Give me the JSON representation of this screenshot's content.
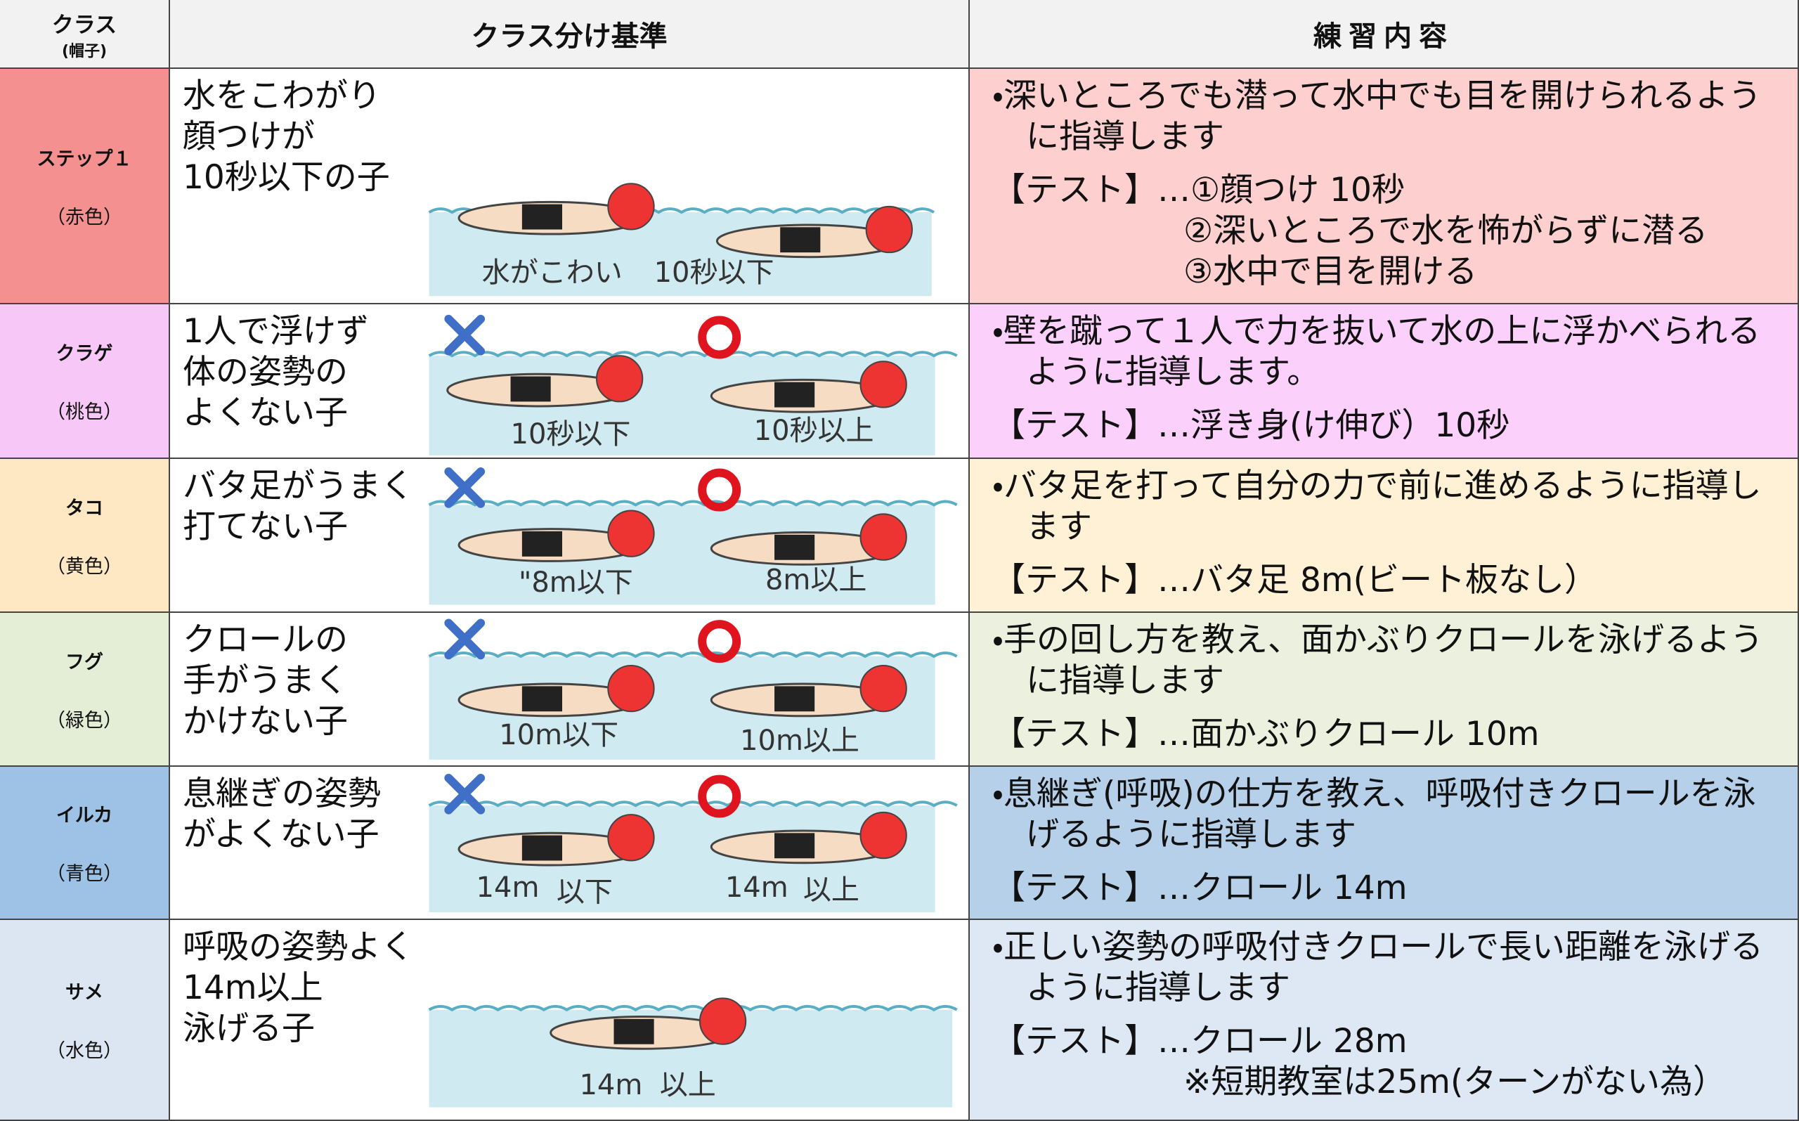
{
  "header": {
    "class": "クラス",
    "cap": "(帽子)",
    "criteria": "クラス分け基準",
    "practice": "練習内容"
  },
  "rows": [
    {
      "class": "ステップ１",
      "cap": "（赤色）",
      "criteria": [
        "水をこわがり",
        "顔つけが",
        "10秒以下の子"
      ],
      "labels": [
        "水がこわい",
        "10秒以下"
      ],
      "practice": "・深いところでも潜って水中でも目を開けられるように指導します",
      "test": [
        "【テスト】…①顔つけ  10秒",
        "②深いところで水を怖がらずに潜る",
        "③水中で目を開ける"
      ]
    },
    {
      "class": "クラゲ",
      "cap": "（桃色）",
      "criteria": [
        "1人で浮けず",
        "体の姿勢の",
        "よくない子"
      ],
      "labels": [
        "10秒以下",
        "10秒以上"
      ],
      "practice": "・壁を蹴って１人で力を抜いて水の上に浮かべられるように指導します。",
      "test": [
        "【テスト】…浮き身(け伸び）10秒"
      ]
    },
    {
      "class": "タコ",
      "cap": "（黄色）",
      "criteria": [
        "バタ足がうまく",
        "打てない子"
      ],
      "labels": [
        "\"8m以下",
        "8m以上"
      ],
      "practice": "・バタ足を打って自分の力で前に進めるように指導します",
      "test": [
        "【テスト】…バタ足  8m(ビート板なし）"
      ]
    },
    {
      "class": "フグ",
      "cap": "（緑色）",
      "criteria": [
        "クロールの",
        "手がうまく",
        "かけない子"
      ],
      "labels": [
        "10m以下",
        "10m以上"
      ],
      "practice": "・手の回し方を教え、面かぶりクロールを泳げるように指導します",
      "test": [
        "【テスト】…面かぶりクロール  10m"
      ]
    },
    {
      "class": "イルカ",
      "cap": "（青色）",
      "criteria": [
        "息継ぎの姿勢",
        "がよくない子"
      ],
      "labels": [
        "14m",
        "以下",
        "14m",
        "以上"
      ],
      "practice": "・息継ぎ(呼吸)の仕方を教え、呼吸付きクロールを泳げるように指導します",
      "test": [
        "【テスト】…クロール  14m"
      ]
    },
    {
      "class": "サメ",
      "cap": "（水色）",
      "criteria": [
        "呼吸の姿勢よく",
        "14m以上",
        "泳げる子"
      ],
      "labels": [
        "14m",
        "以上"
      ],
      "practice": "・正しい姿勢の呼吸付きクロールで長い距離を泳げるように指導します",
      "test": [
        "【テスト】…クロール  28m",
        "※短期教室は25m(ターンがない為）"
      ]
    }
  ]
}
